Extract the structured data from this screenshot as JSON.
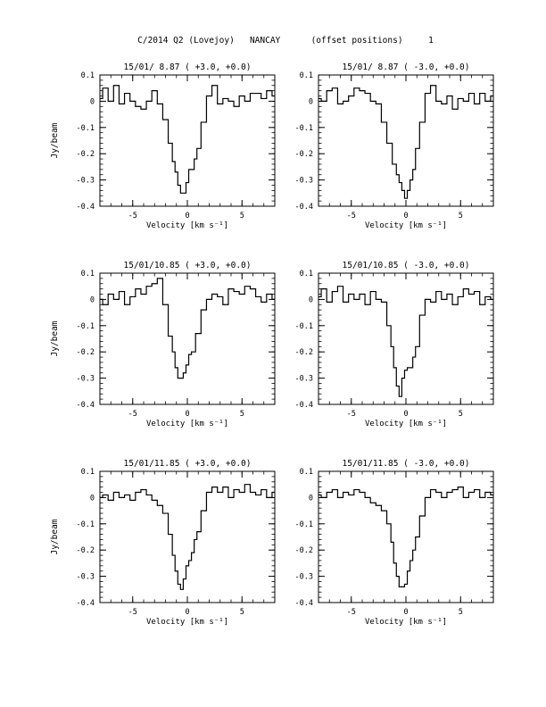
{
  "page_title": "C/2014 Q2 (Lovejoy)   NANCAY      (offset positions)     1",
  "chart_data": [
    {
      "type": "line",
      "step": true,
      "title": "15/01/ 8.87   ( +3.0, +0.0)",
      "xlabel": "Velocity [km s⁻¹]",
      "ylabel": "Jy/beam",
      "xlim": [
        -8,
        8
      ],
      "ylim": [
        -0.4,
        0.1
      ],
      "xticks": [
        "-5",
        "0",
        "5"
      ],
      "yticks": [
        "0.1",
        "0",
        "-0.1",
        "-0.2",
        "-0.3",
        "-0.4"
      ],
      "series": [
        {
          "x": [
            -8.0,
            -7.5,
            -7.0,
            -6.5,
            -6.0,
            -5.5,
            -5.0,
            -4.5,
            -4.0,
            -3.5,
            -3.0,
            -2.5,
            -2.0,
            -1.5,
            -1.25,
            -1.0,
            -0.75,
            -0.5,
            -0.25,
            0.0,
            0.25,
            0.5,
            0.75,
            1.0,
            1.5,
            2.0,
            2.5,
            3.0,
            3.5,
            4.0,
            4.5,
            5.0,
            5.5,
            6.0,
            6.5,
            7.0,
            7.5,
            8.0
          ],
          "y": [
            0.01,
            0.05,
            0.0,
            0.06,
            -0.01,
            0.03,
            0.0,
            -0.02,
            -0.03,
            0.0,
            0.04,
            -0.01,
            -0.07,
            -0.16,
            -0.23,
            -0.27,
            -0.32,
            -0.35,
            -0.35,
            -0.31,
            -0.26,
            -0.26,
            -0.22,
            -0.18,
            -0.08,
            0.02,
            0.06,
            -0.01,
            0.01,
            0.0,
            -0.02,
            0.02,
            0.0,
            0.03,
            0.03,
            0.01,
            0.04,
            0.02
          ]
        }
      ]
    },
    {
      "type": "line",
      "step": true,
      "title": "15/01/ 8.87   ( -3.0, +0.0)",
      "xlabel": "Velocity [km s⁻¹]",
      "ylabel": "",
      "xlim": [
        -8,
        8
      ],
      "ylim": [
        -0.4,
        0.1
      ],
      "xticks": [
        "-5",
        "0",
        "5"
      ],
      "yticks": [
        "0.1",
        "0",
        "-0.1",
        "-0.2",
        "-0.3",
        "-0.4"
      ],
      "series": [
        {
          "x": [
            -8.0,
            -7.5,
            -7.0,
            -6.5,
            -6.0,
            -5.5,
            -5.0,
            -4.5,
            -4.0,
            -3.5,
            -3.0,
            -2.5,
            -2.0,
            -1.5,
            -1.0,
            -0.75,
            -0.5,
            -0.25,
            0.0,
            0.25,
            0.5,
            0.75,
            1.0,
            1.5,
            2.0,
            2.5,
            3.0,
            3.5,
            4.0,
            4.5,
            5.0,
            5.5,
            6.0,
            6.5,
            7.0,
            7.5,
            8.0
          ],
          "y": [
            0.01,
            0.0,
            0.04,
            0.05,
            -0.01,
            0.0,
            0.02,
            0.05,
            0.04,
            0.03,
            0.0,
            -0.01,
            -0.08,
            -0.16,
            -0.24,
            -0.28,
            -0.31,
            -0.34,
            -0.37,
            -0.34,
            -0.3,
            -0.26,
            -0.18,
            -0.08,
            0.03,
            0.06,
            0.0,
            -0.01,
            0.02,
            -0.03,
            0.01,
            0.0,
            0.03,
            -0.01,
            0.03,
            0.0,
            0.02
          ]
        }
      ]
    },
    {
      "type": "line",
      "step": true,
      "title": "15/01/10.85   ( +3.0, +0.0)",
      "xlabel": "Velocity [km s⁻¹]",
      "ylabel": "Jy/beam",
      "xlim": [
        -8,
        8
      ],
      "ylim": [
        -0.4,
        0.1
      ],
      "xticks": [
        "-5",
        "0",
        "5"
      ],
      "yticks": [
        "0.1",
        "0",
        "-0.1",
        "-0.2",
        "-0.3",
        "-0.4"
      ],
      "series": [
        {
          "x": [
            -8.0,
            -7.5,
            -7.0,
            -6.5,
            -6.0,
            -5.5,
            -5.0,
            -4.5,
            -4.0,
            -3.5,
            -3.0,
            -2.5,
            -2.0,
            -1.5,
            -1.25,
            -1.0,
            -0.75,
            -0.5,
            -0.25,
            0.0,
            0.25,
            0.5,
            1.0,
            1.5,
            2.0,
            2.5,
            3.0,
            3.5,
            4.0,
            4.5,
            5.0,
            5.5,
            6.0,
            6.5,
            7.0,
            7.5,
            8.0
          ],
          "y": [
            0.0,
            -0.02,
            0.02,
            0.0,
            0.03,
            -0.02,
            0.01,
            0.04,
            0.02,
            0.05,
            0.06,
            0.08,
            -0.02,
            -0.14,
            -0.2,
            -0.26,
            -0.3,
            -0.3,
            -0.28,
            -0.25,
            -0.21,
            -0.2,
            -0.13,
            -0.04,
            0.0,
            0.02,
            0.01,
            -0.02,
            0.04,
            0.03,
            0.02,
            0.05,
            0.04,
            0.01,
            -0.01,
            0.02,
            0.0
          ]
        }
      ]
    },
    {
      "type": "line",
      "step": true,
      "title": "15/01/10.85   ( -3.0, +0.0)",
      "xlabel": "Velocity [km s⁻¹]",
      "ylabel": "",
      "xlim": [
        -8,
        8
      ],
      "ylim": [
        -0.4,
        0.1
      ],
      "xticks": [
        "-5",
        "0",
        "5"
      ],
      "yticks": [
        "0.1",
        "0",
        "-0.1",
        "-0.2",
        "-0.3",
        "-0.4"
      ],
      "series": [
        {
          "x": [
            -8.0,
            -7.5,
            -7.0,
            -6.5,
            -6.0,
            -5.5,
            -5.0,
            -4.5,
            -4.0,
            -3.5,
            -3.0,
            -2.5,
            -2.0,
            -1.5,
            -1.25,
            -1.0,
            -0.75,
            -0.5,
            -0.25,
            0.0,
            0.25,
            0.5,
            0.75,
            1.0,
            1.5,
            2.0,
            2.5,
            3.0,
            3.5,
            4.0,
            4.5,
            5.0,
            5.5,
            6.0,
            6.5,
            7.0,
            7.5,
            8.0
          ],
          "y": [
            0.01,
            0.04,
            -0.01,
            0.03,
            0.05,
            -0.01,
            0.02,
            0.0,
            0.02,
            -0.02,
            0.03,
            0.0,
            -0.01,
            -0.1,
            -0.18,
            -0.26,
            -0.33,
            -0.37,
            -0.3,
            -0.27,
            -0.26,
            -0.26,
            -0.22,
            -0.18,
            -0.06,
            0.0,
            -0.01,
            0.03,
            0.0,
            0.02,
            -0.02,
            0.01,
            0.04,
            0.02,
            0.03,
            -0.02,
            0.01,
            0.0
          ]
        }
      ]
    },
    {
      "type": "line",
      "step": true,
      "title": "15/01/11.85   ( +3.0, +0.0)",
      "xlabel": "Velocity [km s⁻¹]",
      "ylabel": "Jy/beam",
      "xlim": [
        -8,
        8
      ],
      "ylim": [
        -0.4,
        0.1
      ],
      "xticks": [
        "-5",
        "0",
        "5"
      ],
      "yticks": [
        "0.1",
        "0",
        "-0.1",
        "-0.2",
        "-0.3",
        "-0.4"
      ],
      "series": [
        {
          "x": [
            -8.0,
            -7.5,
            -7.0,
            -6.5,
            -6.0,
            -5.5,
            -5.0,
            -4.5,
            -4.0,
            -3.5,
            -3.0,
            -2.5,
            -2.0,
            -1.5,
            -1.25,
            -1.0,
            -0.75,
            -0.5,
            -0.25,
            0.0,
            0.25,
            0.5,
            0.75,
            1.0,
            1.5,
            2.0,
            2.5,
            3.0,
            3.5,
            4.0,
            4.5,
            5.0,
            5.5,
            6.0,
            6.5,
            7.0,
            7.5,
            8.0
          ],
          "y": [
            0.0,
            0.01,
            -0.01,
            0.02,
            0.0,
            0.01,
            -0.01,
            0.02,
            0.03,
            0.01,
            -0.01,
            -0.03,
            -0.06,
            -0.14,
            -0.22,
            -0.28,
            -0.33,
            -0.35,
            -0.31,
            -0.26,
            -0.24,
            -0.21,
            -0.16,
            -0.13,
            -0.05,
            0.02,
            0.04,
            0.02,
            0.04,
            0.0,
            0.03,
            0.02,
            0.05,
            0.02,
            0.01,
            0.03,
            0.0,
            0.02
          ]
        }
      ]
    },
    {
      "type": "line",
      "step": true,
      "title": "15/01/11.85   ( -3.0, +0.0)",
      "xlabel": "Velocity [km s⁻¹]",
      "ylabel": "",
      "xlim": [
        -8,
        8
      ],
      "ylim": [
        -0.4,
        0.1
      ],
      "xticks": [
        "-5",
        "0",
        "5"
      ],
      "yticks": [
        "0.1",
        "0",
        "-0.1",
        "-0.2",
        "-0.3",
        "-0.4"
      ],
      "series": [
        {
          "x": [
            -8.0,
            -7.5,
            -7.0,
            -6.5,
            -6.0,
            -5.5,
            -5.0,
            -4.5,
            -4.0,
            -3.5,
            -3.0,
            -2.5,
            -2.0,
            -1.5,
            -1.25,
            -1.0,
            -0.75,
            -0.5,
            -0.25,
            0.0,
            0.25,
            0.5,
            0.75,
            1.0,
            1.5,
            2.0,
            2.5,
            3.0,
            3.5,
            4.0,
            4.5,
            5.0,
            5.5,
            6.0,
            6.5,
            7.0,
            7.5,
            8.0
          ],
          "y": [
            0.01,
            0.0,
            0.02,
            0.03,
            0.0,
            0.02,
            0.01,
            0.03,
            0.02,
            0.0,
            -0.02,
            -0.03,
            -0.05,
            -0.1,
            -0.17,
            -0.25,
            -0.3,
            -0.34,
            -0.34,
            -0.33,
            -0.28,
            -0.24,
            -0.2,
            -0.15,
            -0.07,
            0.0,
            0.03,
            0.02,
            0.0,
            0.02,
            0.03,
            0.04,
            0.0,
            0.02,
            0.03,
            0.0,
            0.02,
            0.01
          ]
        }
      ]
    }
  ]
}
